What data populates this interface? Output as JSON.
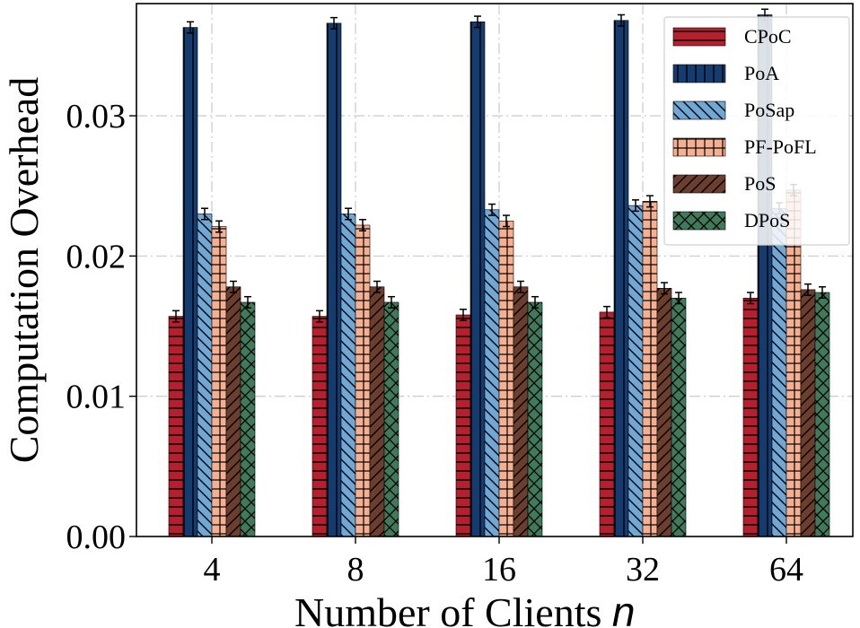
{
  "chart_data": {
    "type": "bar",
    "title": "",
    "xlabel": "Number of Clients",
    "xlabel_var": "n",
    "ylabel": "Computation Overhead",
    "categories": [
      "4",
      "8",
      "16",
      "32",
      "64"
    ],
    "ylim": [
      0,
      0.038
    ],
    "yticks": [
      0.0,
      0.01,
      0.02,
      0.03
    ],
    "ytick_labels": [
      "0.00",
      "0.01",
      "0.02",
      "0.03"
    ],
    "grid": true,
    "legend_position": "top-right",
    "error_bar": 0.0004,
    "series": [
      {
        "name": "CPoC",
        "color": "#b5202e",
        "pattern": "horizontal",
        "values": [
          0.0157,
          0.0157,
          0.0158,
          0.016,
          0.017
        ]
      },
      {
        "name": "PoA",
        "color": "#143c6e",
        "pattern": "vertical",
        "values": [
          0.0363,
          0.0366,
          0.0367,
          0.0368,
          0.0372
        ]
      },
      {
        "name": "PoSap",
        "color": "#6fa8d4",
        "pattern": "backslash",
        "values": [
          0.023,
          0.023,
          0.0233,
          0.0236,
          0.0234
        ]
      },
      {
        "name": "PF-PoFL",
        "color": "#f5b092",
        "pattern": "grid",
        "values": [
          0.0221,
          0.0222,
          0.0225,
          0.0239,
          0.0247
        ]
      },
      {
        "name": "PoS",
        "color": "#6b3e2e",
        "pattern": "slash",
        "values": [
          0.0178,
          0.0178,
          0.0178,
          0.0177,
          0.0176
        ]
      },
      {
        "name": "DPoS",
        "color": "#3f7a5a",
        "pattern": "cross",
        "values": [
          0.0167,
          0.0167,
          0.0167,
          0.017,
          0.0174
        ]
      }
    ]
  }
}
